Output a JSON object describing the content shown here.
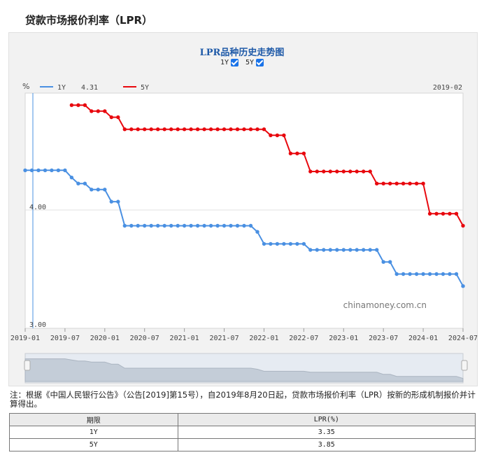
{
  "page": {
    "title": "贷款市场报价利率（LPR）"
  },
  "chart_header": {
    "title": "LPR品种历史走势图",
    "toggle_1y": "1Y",
    "toggle_5y": "5Y"
  },
  "legend": {
    "unit": "%",
    "s1_name": "1Y",
    "s1_value": "4.31",
    "s2_name": "5Y",
    "cursor_date": "2019-02"
  },
  "watermark": "chinamoney.com.cn",
  "note": "注：根据《中国人民银行公告》（公告[2019]第15号），自2019年8月20日起，贷款市场报价利率（LPR）按新的形成机制报价并计算得出。",
  "table": {
    "headers": [
      "期限",
      "LPR(%)"
    ],
    "rows": [
      [
        "1Y",
        "3.35"
      ],
      [
        "5Y",
        "3.85"
      ]
    ]
  },
  "colors": {
    "s1": "#4a90e2",
    "s2": "#e8080e",
    "title": "#1f5aa8"
  },
  "chart_data": {
    "type": "line",
    "title": "LPR品种历史走势图",
    "ylabel": "%",
    "y_ticks": [
      "4.00",
      "3.00"
    ],
    "ylim": [
      3.0,
      4.95
    ],
    "x_ticks": [
      "2019-01",
      "2019-07",
      "2020-01",
      "2020-07",
      "2021-01",
      "2021-07",
      "2022-01",
      "2022-07",
      "2023-01",
      "2023-07",
      "2024-01",
      "2024-07"
    ],
    "xlim": [
      "2019-01",
      "2024-07"
    ],
    "legend_position": "top-left",
    "grid": true,
    "series": [
      {
        "name": "1Y",
        "x": [
          "2019-01",
          "2019-02",
          "2019-03",
          "2019-04",
          "2019-05",
          "2019-06",
          "2019-07",
          "2019-08",
          "2019-09",
          "2019-10",
          "2019-11",
          "2019-12",
          "2020-01",
          "2020-02",
          "2020-03",
          "2020-04",
          "2020-05",
          "2020-06",
          "2020-07",
          "2020-08",
          "2020-09",
          "2020-10",
          "2020-11",
          "2020-12",
          "2021-01",
          "2021-02",
          "2021-03",
          "2021-04",
          "2021-05",
          "2021-06",
          "2021-07",
          "2021-08",
          "2021-09",
          "2021-10",
          "2021-11",
          "2021-12",
          "2022-01",
          "2022-02",
          "2022-03",
          "2022-04",
          "2022-05",
          "2022-06",
          "2022-07",
          "2022-08",
          "2022-09",
          "2022-10",
          "2022-11",
          "2022-12",
          "2023-01",
          "2023-02",
          "2023-03",
          "2023-04",
          "2023-05",
          "2023-06",
          "2023-07",
          "2023-08",
          "2023-09",
          "2023-10",
          "2023-11",
          "2023-12",
          "2024-01",
          "2024-02",
          "2024-03",
          "2024-04",
          "2024-05",
          "2024-06",
          "2024-07"
        ],
        "values": [
          4.31,
          4.31,
          4.31,
          4.31,
          4.31,
          4.31,
          4.31,
          4.25,
          4.2,
          4.2,
          4.15,
          4.15,
          4.15,
          4.05,
          4.05,
          3.85,
          3.85,
          3.85,
          3.85,
          3.85,
          3.85,
          3.85,
          3.85,
          3.85,
          3.85,
          3.85,
          3.85,
          3.85,
          3.85,
          3.85,
          3.85,
          3.85,
          3.85,
          3.85,
          3.85,
          3.8,
          3.7,
          3.7,
          3.7,
          3.7,
          3.7,
          3.7,
          3.7,
          3.65,
          3.65,
          3.65,
          3.65,
          3.65,
          3.65,
          3.65,
          3.65,
          3.65,
          3.65,
          3.65,
          3.55,
          3.55,
          3.45,
          3.45,
          3.45,
          3.45,
          3.45,
          3.45,
          3.45,
          3.45,
          3.45,
          3.45,
          3.35
        ]
      },
      {
        "name": "5Y",
        "x": [
          "2019-08",
          "2019-09",
          "2019-10",
          "2019-11",
          "2019-12",
          "2020-01",
          "2020-02",
          "2020-03",
          "2020-04",
          "2020-05",
          "2020-06",
          "2020-07",
          "2020-08",
          "2020-09",
          "2020-10",
          "2020-11",
          "2020-12",
          "2021-01",
          "2021-02",
          "2021-03",
          "2021-04",
          "2021-05",
          "2021-06",
          "2021-07",
          "2021-08",
          "2021-09",
          "2021-10",
          "2021-11",
          "2021-12",
          "2022-01",
          "2022-02",
          "2022-03",
          "2022-04",
          "2022-05",
          "2022-06",
          "2022-07",
          "2022-08",
          "2022-09",
          "2022-10",
          "2022-11",
          "2022-12",
          "2023-01",
          "2023-02",
          "2023-03",
          "2023-04",
          "2023-05",
          "2023-06",
          "2023-07",
          "2023-08",
          "2023-09",
          "2023-10",
          "2023-11",
          "2023-12",
          "2024-01",
          "2024-02",
          "2024-03",
          "2024-04",
          "2024-05",
          "2024-06",
          "2024-07"
        ],
        "values": [
          4.85,
          4.85,
          4.85,
          4.8,
          4.8,
          4.8,
          4.75,
          4.75,
          4.65,
          4.65,
          4.65,
          4.65,
          4.65,
          4.65,
          4.65,
          4.65,
          4.65,
          4.65,
          4.65,
          4.65,
          4.65,
          4.65,
          4.65,
          4.65,
          4.65,
          4.65,
          4.65,
          4.65,
          4.65,
          4.65,
          4.6,
          4.6,
          4.6,
          4.45,
          4.45,
          4.45,
          4.3,
          4.3,
          4.3,
          4.3,
          4.3,
          4.3,
          4.3,
          4.3,
          4.3,
          4.3,
          4.2,
          4.2,
          4.2,
          4.2,
          4.2,
          4.2,
          4.2,
          4.2,
          3.95,
          3.95,
          3.95,
          3.95,
          3.95,
          3.85
        ]
      }
    ]
  }
}
